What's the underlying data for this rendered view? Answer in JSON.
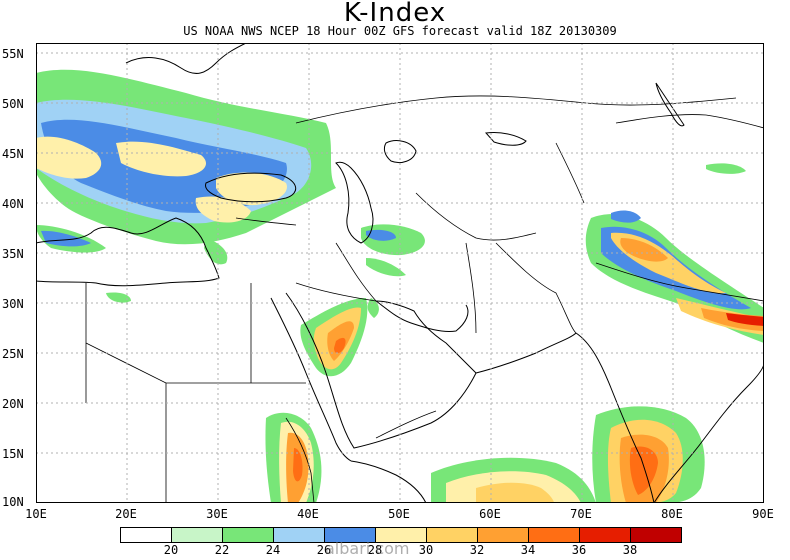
{
  "title": "K-Index",
  "subtitle": "US NOAA NWS NCEP 18 Hour 00Z GFS forecast valid 18Z 20130309",
  "watermark": "albari.com",
  "lat_labels": [
    "55N",
    "50N",
    "45N",
    "40N",
    "35N",
    "30N",
    "25N",
    "20N",
    "15N",
    "10N"
  ],
  "lon_labels": [
    "10E",
    "20E",
    "30E",
    "40E",
    "50E",
    "60E",
    "70E",
    "80E",
    "90E"
  ],
  "colorbar": {
    "labels": [
      "20",
      "22",
      "24",
      "26",
      "28",
      "30",
      "32",
      "34",
      "36",
      "38"
    ],
    "colors": [
      "#ffffff",
      "#c8f5c8",
      "#78e678",
      "#a0d2f5",
      "#4b8ce6",
      "#fff0aa",
      "#ffd264",
      "#ffa032",
      "#ff6e14",
      "#e61e00"
    ]
  },
  "map": {
    "projection": "lat-lon",
    "lon_range": [
      10,
      90
    ],
    "lat_range": [
      10,
      55
    ],
    "grid": "dotted",
    "field": "K-Index"
  }
}
